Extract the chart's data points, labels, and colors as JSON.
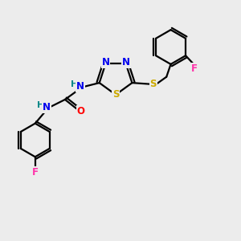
{
  "bg_color": "#ececec",
  "bond_color": "#000000",
  "bond_width": 1.6,
  "atom_colors": {
    "N": "#0000ee",
    "S": "#ccaa00",
    "O": "#ff0000",
    "F_pink": "#ff33aa",
    "F_blue": "#0000ee",
    "H": "#008888",
    "C": "#000000"
  },
  "fig_width": 3.0,
  "fig_height": 3.0,
  "dpi": 100
}
